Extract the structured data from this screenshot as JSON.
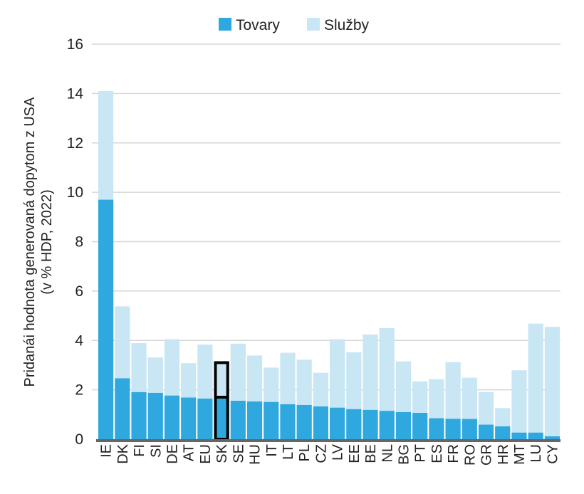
{
  "chart_data": {
    "type": "bar",
    "stacked": true,
    "ylabel_line1": "Pridanái hodnota generovaná dopytom z USA",
    "ylabel_line2": "(v % HDP, 2022)",
    "ylim": [
      0,
      16
    ],
    "yticks": [
      0,
      2,
      4,
      6,
      8,
      10,
      12,
      14,
      16
    ],
    "grid": true,
    "legend_placement": "top-center",
    "highlighted_category": "SK",
    "categories": [
      "IE",
      "DK",
      "FI",
      "SI",
      "DE",
      "AT",
      "EU",
      "SK",
      "SE",
      "HU",
      "IT",
      "LT",
      "PL",
      "CZ",
      "LV",
      "EE",
      "BE",
      "NL",
      "BG",
      "PT",
      "ES",
      "FR",
      "RO",
      "GR",
      "HR",
      "MT",
      "LU",
      "CY"
    ],
    "series": [
      {
        "name": "Tovary",
        "color": "#2fa8df",
        "values": [
          9.7,
          2.47,
          1.91,
          1.88,
          1.77,
          1.69,
          1.65,
          1.7,
          1.56,
          1.53,
          1.51,
          1.42,
          1.39,
          1.33,
          1.28,
          1.22,
          1.19,
          1.15,
          1.1,
          1.07,
          0.85,
          0.83,
          0.82,
          0.59,
          0.52,
          0.27,
          0.27,
          0.12
        ]
      },
      {
        "name": "Služby",
        "color": "#c9e6f4",
        "values": [
          4.4,
          2.91,
          1.98,
          1.43,
          2.28,
          1.39,
          2.18,
          1.4,
          2.31,
          1.86,
          1.39,
          2.08,
          1.83,
          1.36,
          2.77,
          2.3,
          3.05,
          3.35,
          2.05,
          1.27,
          1.58,
          2.29,
          1.67,
          1.32,
          0.74,
          2.52,
          4.41,
          4.43
        ]
      }
    ]
  }
}
